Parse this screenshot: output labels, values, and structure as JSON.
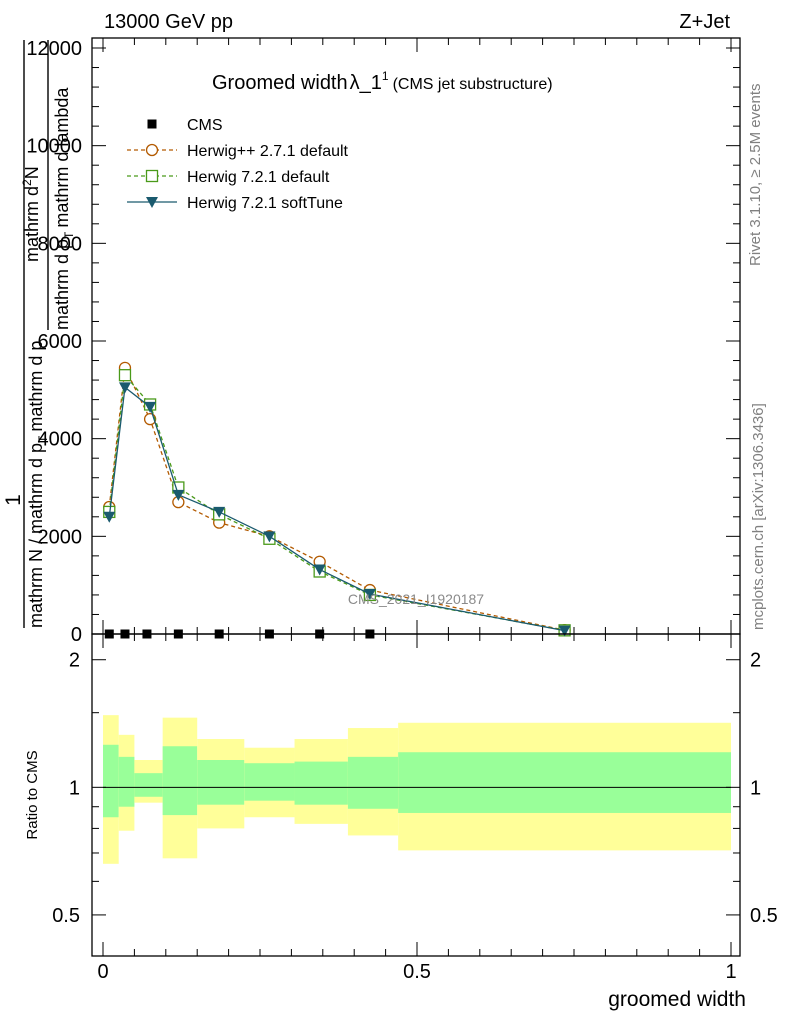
{
  "header": {
    "left": "13000 GeV pp",
    "right": "Z+Jet",
    "title_main": "Groomed width",
    "title_symbol": "λ_1",
    "title_sup": "1",
    "title_sub": "(CMS jet substructure)"
  },
  "side": {
    "rivet": "Rivet 3.1.10, ≥ 2.5M events",
    "mcplots": "mcplots.cern.ch [arXiv:1306.3436]"
  },
  "watermark": "CMS_2021_I1920187",
  "ylabel_main": {
    "one": "1",
    "denom1": "mathrm N / mathrm d p",
    "denom1_sub": "T",
    "denom1_rest": "mathrm d p",
    "numer": "mathrm d",
    "numer_sup": "2",
    "numer_rest": "N",
    "denom2": "mathrm d p",
    "denom2_sub": "T",
    "denom2_rest": "mathrm d lambda"
  },
  "ylabel_ratio": "Ratio to CMS",
  "xlabel": "groomed width",
  "legend": [
    {
      "label": "CMS",
      "color": "#000000",
      "marker": "square-filled",
      "style": "none"
    },
    {
      "label": "Herwig++ 2.7.1 default",
      "color": "#b35a00",
      "marker": "circle-open",
      "style": "dashed"
    },
    {
      "label": "Herwig 7.2.1 default",
      "color": "#4a9a1a",
      "marker": "square-open",
      "style": "dashed"
    },
    {
      "label": "Herwig 7.2.1 softTune",
      "color": "#1a5a6e",
      "marker": "triangle-down-filled",
      "style": "solid"
    }
  ],
  "chart_data": {
    "type": "line",
    "xlim": [
      0,
      1
    ],
    "x_ticks": [
      "0",
      "0.5",
      "1"
    ],
    "main": {
      "ylim": [
        0,
        12000
      ],
      "y_ticks": [
        "0",
        "2000",
        "4000",
        "6000",
        "8000",
        "10000",
        "12000"
      ],
      "cms_x": [
        0.01,
        0.035,
        0.07,
        0.12,
        0.185,
        0.265,
        0.345,
        0.425
      ],
      "cms_y": [
        0,
        0,
        0,
        0,
        0,
        0,
        0,
        0
      ],
      "series": [
        {
          "name": "Herwig++ 2.7.1 default",
          "x": [
            0.01,
            0.035,
            0.075,
            0.12,
            0.185,
            0.265,
            0.345,
            0.425,
            0.735
          ],
          "y": [
            2600,
            5450,
            4400,
            2700,
            2280,
            2000,
            1480,
            900,
            80
          ]
        },
        {
          "name": "Herwig 7.2.1 default",
          "x": [
            0.01,
            0.035,
            0.075,
            0.12,
            0.185,
            0.265,
            0.345,
            0.425,
            0.735
          ],
          "y": [
            2500,
            5300,
            4700,
            3000,
            2450,
            1950,
            1280,
            800,
            75
          ]
        },
        {
          "name": "Herwig 7.2.1 softTune",
          "x": [
            0.01,
            0.035,
            0.075,
            0.12,
            0.185,
            0.265,
            0.345,
            0.425,
            0.735
          ],
          "y": [
            2400,
            5050,
            4650,
            2850,
            2500,
            2000,
            1320,
            820,
            70
          ]
        }
      ]
    },
    "ratio": {
      "ylim": [
        0.4,
        2.3
      ],
      "y_ticks": [
        "0.5",
        "1",
        "2"
      ],
      "reference": 1,
      "bands": [
        {
          "x": [
            0,
            0.025
          ],
          "inner": [
            0.85,
            1.26
          ],
          "outer": [
            0.66,
            1.48
          ]
        },
        {
          "x": [
            0.025,
            0.05
          ],
          "inner": [
            0.9,
            1.18
          ],
          "outer": [
            0.79,
            1.33
          ]
        },
        {
          "x": [
            0.05,
            0.095
          ],
          "inner": [
            0.95,
            1.08
          ],
          "outer": [
            0.92,
            1.16
          ]
        },
        {
          "x": [
            0.095,
            0.15
          ],
          "inner": [
            0.86,
            1.25
          ],
          "outer": [
            0.68,
            1.46
          ]
        },
        {
          "x": [
            0.15,
            0.225
          ],
          "inner": [
            0.91,
            1.16
          ],
          "outer": [
            0.8,
            1.3
          ]
        },
        {
          "x": [
            0.225,
            0.305
          ],
          "inner": [
            0.93,
            1.14
          ],
          "outer": [
            0.85,
            1.24
          ]
        },
        {
          "x": [
            0.305,
            0.39
          ],
          "inner": [
            0.91,
            1.15
          ],
          "outer": [
            0.82,
            1.3
          ]
        },
        {
          "x": [
            0.39,
            0.47
          ],
          "inner": [
            0.89,
            1.18
          ],
          "outer": [
            0.77,
            1.38
          ]
        },
        {
          "x": [
            0.47,
            1.0
          ],
          "inner": [
            0.87,
            1.21
          ],
          "outer": [
            0.71,
            1.42
          ]
        }
      ]
    }
  }
}
